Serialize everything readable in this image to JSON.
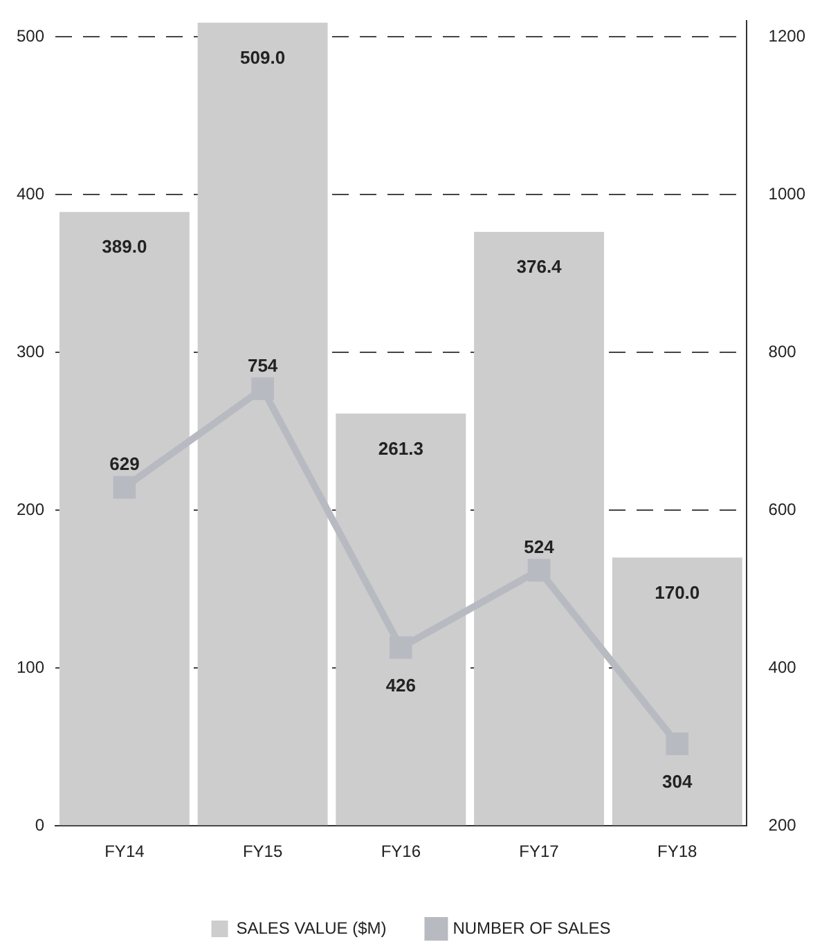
{
  "chart_data": {
    "type": "bar",
    "categories": [
      "FY14",
      "FY15",
      "FY16",
      "FY17",
      "FY18"
    ],
    "series": [
      {
        "name": "SALES VALUE ($M)",
        "color": "#cdcdcd",
        "values": [
          389.0,
          509.0,
          261.3,
          376.4,
          170.0
        ],
        "value_labels": [
          "389.0",
          "509.0",
          "261.3",
          "376.4",
          "170.0"
        ]
      },
      {
        "name": "NUMBER OF SALES",
        "type": "line",
        "axis": "y2",
        "color": "#b8bac2",
        "values": [
          629,
          754,
          426,
          524,
          304
        ],
        "value_labels": [
          "629",
          "754",
          "426",
          "524",
          "304"
        ]
      }
    ],
    "ylim": [
      0,
      510
    ],
    "yticks": [
      0,
      100,
      200,
      300,
      400,
      500
    ],
    "y2lim": [
      200,
      1220
    ],
    "y2ticks": [
      200,
      400,
      600,
      800,
      1000,
      1200
    ],
    "grid": "y",
    "legend": "bottom",
    "marker": "square",
    "line_style": "solid"
  }
}
